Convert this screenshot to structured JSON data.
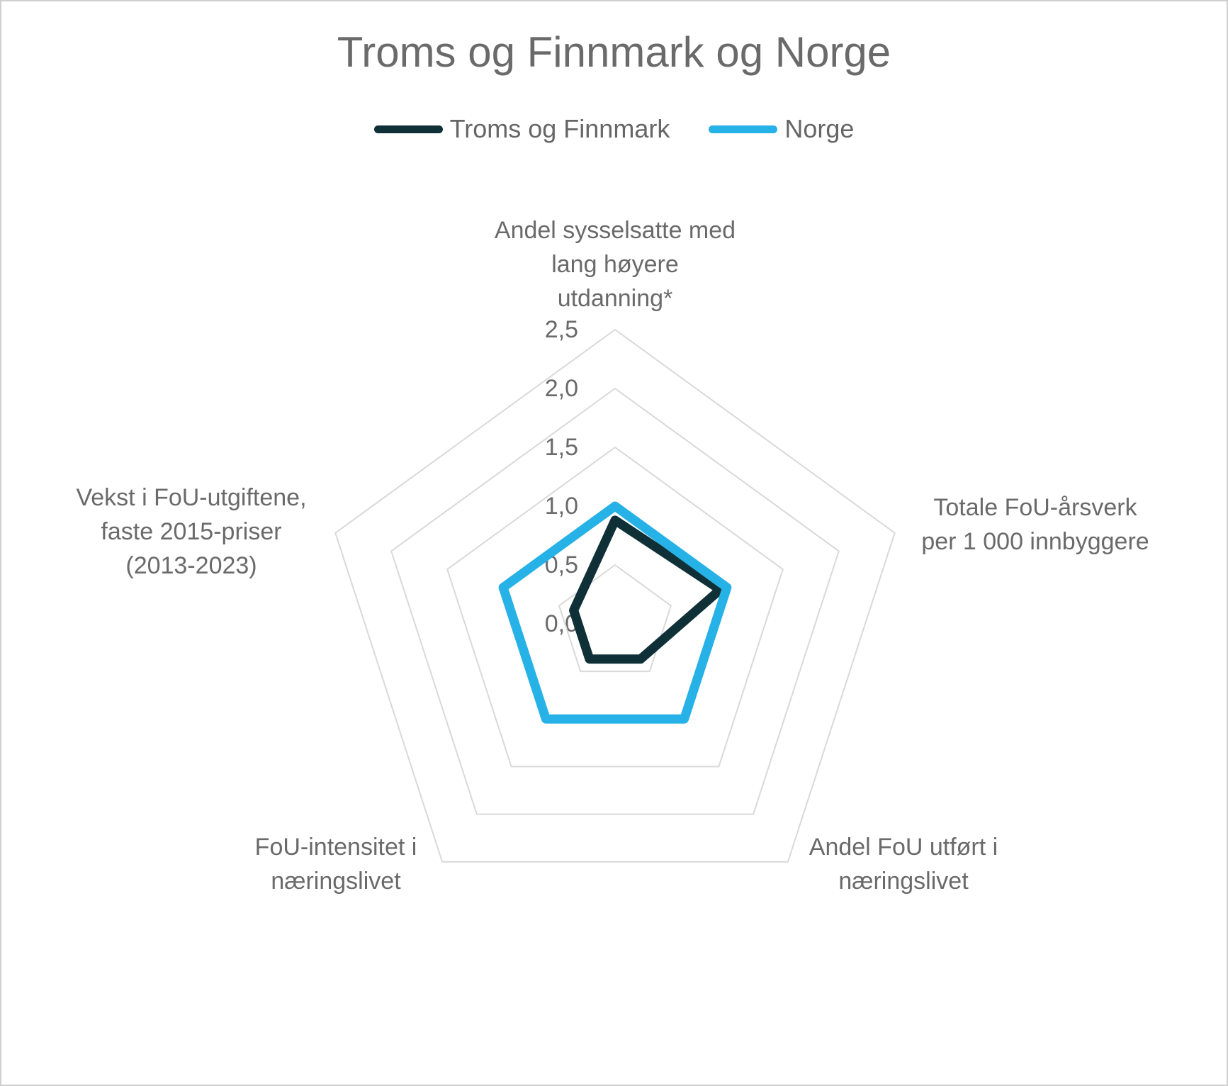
{
  "chart_data": {
    "type": "radar",
    "title": "Troms og Finnmark og Norge",
    "categories": [
      "Andel sysselsatte med lang høyere utdanning*",
      "Totale FoU-årsverk per 1 000 innbyggere",
      "Andel FoU utført i næringslivet",
      "FoU-intensitet i næringslivet",
      "Vekst i FoU-utgiftene, faste 2015-priser (2013-2023)"
    ],
    "axis_labels_display": [
      "Andel sysselsatte med\nlang høyere\nutdanning*",
      "Totale FoU-årsverk\nper 1 000 innbyggere",
      "Andel FoU utført i\nnæringslivet",
      "FoU-intensitet i\nnæringslivet",
      "Vekst i FoU-utgiftene,\nfaste 2015-priser\n(2013-2023)"
    ],
    "series": [
      {
        "name": "Troms og Finnmark",
        "color": "#0f3037",
        "values": [
          0.88,
          0.94,
          0.37,
          0.37,
          0.37
        ]
      },
      {
        "name": "Norge",
        "color": "#27b2e7",
        "values": [
          1.0,
          1.0,
          1.0,
          1.0,
          1.0
        ]
      }
    ],
    "radial_axis": {
      "min": 0,
      "max": 2.5,
      "step": 0.5,
      "tick_labels": [
        "2,5",
        "2,0",
        "1,5",
        "1,0",
        "0,5",
        "0,0"
      ]
    },
    "grid": true,
    "legend_position": "top",
    "gridline_color": "#d9d9d9",
    "text_color": "#6a6a6a"
  }
}
